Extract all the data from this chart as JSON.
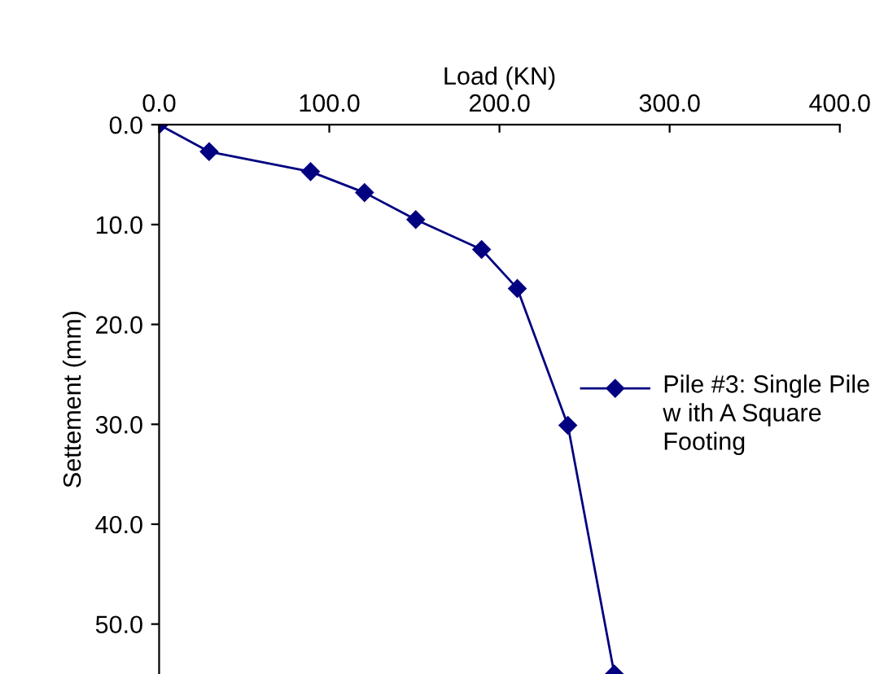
{
  "chart_data": {
    "type": "line",
    "xlabel": "Load (KN)",
    "ylabel": "Settement (mm)",
    "x": [
      0,
      29.4,
      89,
      120.7,
      150.8,
      189.5,
      210.5,
      240.2,
      267.5
    ],
    "series": [
      {
        "name": "Pile #3: Single Pile w ith A Square Footing",
        "color": "#000080",
        "values": [
          0,
          2.7,
          4.7,
          6.8,
          9.5,
          12.5,
          16.4,
          30.1,
          55.0
        ]
      }
    ],
    "xlim": [
      0,
      400
    ],
    "xticks": [
      {
        "value": 0,
        "label": "0.0"
      },
      {
        "value": 100,
        "label": "100.0"
      },
      {
        "value": 200,
        "label": "200.0"
      },
      {
        "value": 300,
        "label": "300.0"
      },
      {
        "value": 400,
        "label": "400.0"
      }
    ],
    "ylim": [
      55,
      0
    ],
    "yticks": [
      {
        "value": 0,
        "label": "0.0"
      },
      {
        "value": 10,
        "label": "10.0"
      },
      {
        "value": 20,
        "label": "20.0"
      },
      {
        "value": 30,
        "label": "30.0"
      },
      {
        "value": 40,
        "label": "40.0"
      },
      {
        "value": 50,
        "label": "50.0"
      }
    ],
    "marker": "diamond",
    "line_style": "solid",
    "grid": false,
    "legend": "right"
  }
}
